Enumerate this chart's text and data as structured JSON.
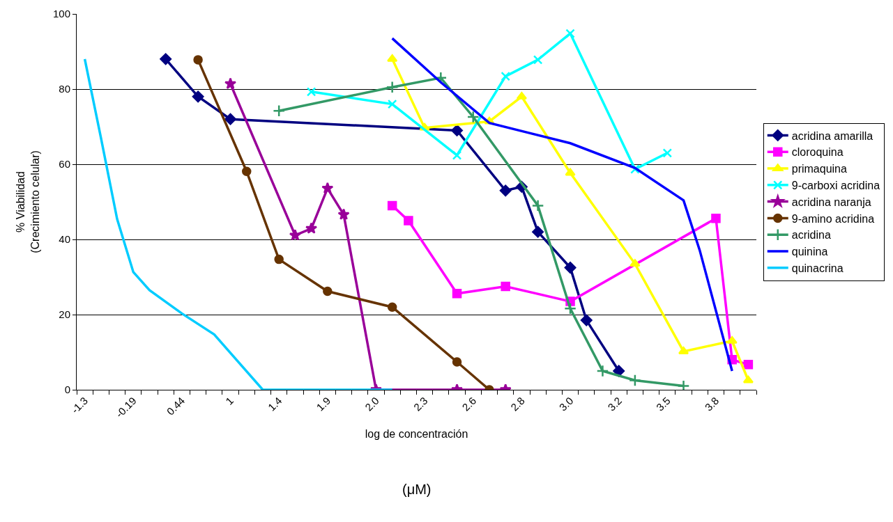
{
  "chart_data": {
    "type": "line",
    "xlabel": "log de concentración",
    "ylabel": "% Viabilidad\n(Crecimiento celular)",
    "annotations": [
      "(μM)"
    ],
    "categories": [
      "-1.3",
      null,
      null,
      "-0.19",
      null,
      null,
      "0.44",
      null,
      null,
      "1",
      null,
      null,
      "1.4",
      null,
      null,
      "1.9",
      null,
      null,
      "2.0",
      null,
      null,
      "2.3",
      null,
      null,
      "2.6",
      null,
      null,
      "2.8",
      null,
      null,
      "3.0",
      null,
      null,
      "3.2",
      null,
      null,
      "3.5",
      null,
      null,
      "3.8",
      null,
      null
    ],
    "series": [
      {
        "name": "acridina amarilla",
        "color": "#000080",
        "marker": "diamond",
        "values": [
          null,
          null,
          null,
          null,
          null,
          88,
          null,
          78,
          null,
          72,
          null,
          null,
          null,
          null,
          null,
          null,
          null,
          null,
          null,
          null,
          null,
          null,
          null,
          69,
          null,
          null,
          53,
          54,
          42,
          null,
          32.5,
          18.5,
          null,
          5,
          null,
          null,
          null,
          null,
          null,
          null,
          null,
          null
        ]
      },
      {
        "name": "cloroquina",
        "color": "#ff00ff",
        "marker": "square",
        "values": [
          null,
          null,
          null,
          null,
          null,
          null,
          null,
          null,
          null,
          null,
          null,
          null,
          null,
          null,
          null,
          null,
          null,
          null,
          null,
          49,
          45,
          null,
          null,
          25.6,
          null,
          null,
          27.5,
          null,
          null,
          null,
          23.5,
          null,
          null,
          null,
          null,
          null,
          null,
          null,
          null,
          45.6,
          8,
          6.7
        ]
      },
      {
        "name": "primaquina",
        "color": "#ffff00",
        "marker": "triangle",
        "values": [
          null,
          null,
          null,
          null,
          null,
          null,
          null,
          null,
          null,
          null,
          null,
          null,
          null,
          null,
          null,
          null,
          null,
          null,
          null,
          88,
          null,
          69.7,
          null,
          null,
          null,
          71.4,
          null,
          78,
          null,
          null,
          57.7,
          null,
          null,
          null,
          33.5,
          null,
          null,
          10.2,
          null,
          null,
          13,
          2.5
        ]
      },
      {
        "name": "9-carboxi acridina",
        "color": "#00ffff",
        "marker": "x",
        "values": [
          null,
          null,
          null,
          null,
          null,
          null,
          null,
          null,
          null,
          null,
          null,
          null,
          null,
          null,
          79.3,
          null,
          null,
          null,
          null,
          76,
          null,
          null,
          null,
          62.4,
          null,
          null,
          83.4,
          null,
          87.8,
          null,
          94.8,
          null,
          null,
          null,
          58.7,
          null,
          63,
          null,
          null,
          null,
          null,
          null
        ]
      },
      {
        "name": "acridina naranja",
        "color": "#990099",
        "marker": "star",
        "values": [
          null,
          null,
          null,
          null,
          null,
          null,
          null,
          null,
          null,
          81.4,
          null,
          null,
          null,
          41.1,
          42.9,
          53.6,
          46.6,
          null,
          0,
          null,
          null,
          null,
          null,
          0,
          null,
          null,
          0,
          null,
          null,
          null,
          null,
          null,
          null,
          null,
          null,
          null,
          null,
          null,
          null,
          null,
          null,
          null
        ]
      },
      {
        "name": "9-amino acridina",
        "color": "#663300",
        "marker": "circle",
        "values": [
          null,
          null,
          null,
          null,
          null,
          null,
          null,
          87.8,
          null,
          null,
          58.1,
          null,
          34.7,
          null,
          null,
          26.2,
          null,
          null,
          null,
          22,
          null,
          null,
          null,
          7.4,
          null,
          0,
          null,
          null,
          null,
          null,
          null,
          null,
          null,
          null,
          null,
          null,
          null,
          null,
          null,
          null,
          null,
          null
        ]
      },
      {
        "name": "acridina",
        "color": "#339966",
        "marker": "cross",
        "values": [
          null,
          null,
          null,
          null,
          null,
          null,
          null,
          null,
          null,
          null,
          null,
          null,
          74.2,
          null,
          null,
          null,
          null,
          null,
          null,
          80.5,
          null,
          null,
          83,
          null,
          72.6,
          null,
          null,
          null,
          49,
          null,
          21.6,
          null,
          5,
          null,
          2.5,
          null,
          null,
          1,
          null,
          null,
          null,
          null
        ]
      },
      {
        "name": "quinina",
        "color": "#0000ff",
        "marker": "none",
        "values": [
          null,
          null,
          null,
          null,
          null,
          null,
          null,
          null,
          null,
          null,
          null,
          null,
          null,
          null,
          null,
          null,
          null,
          null,
          null,
          93.5,
          null,
          null,
          81.8,
          null,
          null,
          71,
          null,
          null,
          null,
          null,
          65.6,
          null,
          null,
          null,
          59,
          null,
          null,
          50.4,
          37.1,
          null,
          5,
          null
        ]
      },
      {
        "name": "quinacrina",
        "color": "#00ccff",
        "marker": "none",
        "values": [
          88,
          67,
          45.4,
          31.3,
          26.5,
          null,
          20.3,
          null,
          14.7,
          null,
          null,
          0,
          null,
          0,
          null,
          0,
          null,
          0,
          null,
          0,
          null,
          null,
          null,
          null,
          null,
          null,
          null,
          null,
          null,
          null,
          null,
          null,
          null,
          null,
          null,
          null,
          null,
          null,
          null,
          null,
          null,
          null
        ]
      }
    ],
    "ylim": [
      0,
      100
    ],
    "yticks": [
      0,
      20,
      40,
      60,
      80,
      100
    ],
    "grid": "y",
    "legend": "right"
  }
}
